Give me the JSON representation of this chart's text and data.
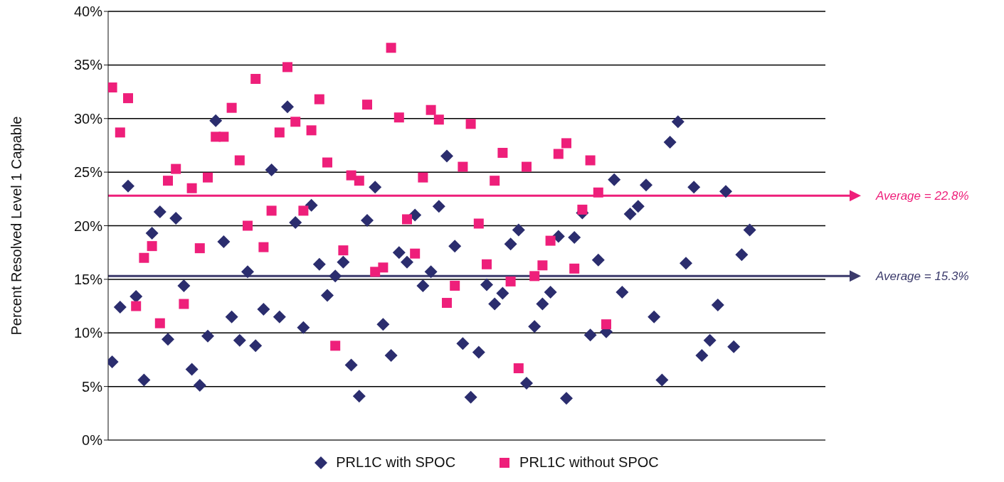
{
  "chart_data": {
    "type": "scatter",
    "ylabel": "Percent Resolved Level 1 Capable",
    "categories": [
      null,
      null,
      null,
      null,
      null,
      null,
      null,
      null,
      null,
      null,
      null,
      null,
      null,
      null,
      null,
      null,
      null,
      null,
      null,
      null,
      null,
      null,
      null,
      null,
      null,
      null,
      null,
      null,
      null,
      null,
      null,
      null,
      null,
      null,
      null,
      null,
      null,
      null,
      null,
      null,
      null,
      null,
      null,
      null,
      null,
      null,
      null,
      null,
      null,
      null,
      null,
      null,
      null,
      null,
      null,
      null,
      null,
      null,
      null,
      null,
      null,
      null,
      null,
      null,
      null,
      null,
      null,
      null,
      null,
      null,
      null,
      null,
      null,
      null,
      null,
      null,
      null,
      null,
      null,
      null,
      null,
      null,
      null,
      null,
      null,
      null,
      null,
      null,
      null,
      null
    ],
    "series": [
      {
        "name": "PRL1C with SPOC",
        "color": "#2b2d6e",
        "marker": "diamond",
        "values": [
          7.3,
          12.4,
          23.7,
          13.4,
          5.6,
          19.3,
          21.3,
          9.4,
          20.7,
          14.4,
          6.6,
          5.1,
          9.7,
          29.8,
          18.5,
          11.5,
          9.3,
          15.7,
          8.8,
          12.2,
          25.2,
          11.5,
          31.1,
          20.3,
          10.5,
          21.9,
          16.4,
          13.5,
          15.3,
          16.6,
          7.0,
          4.1,
          20.5,
          23.6,
          10.8,
          7.9,
          17.5,
          16.6,
          21.0,
          14.4,
          15.7,
          21.8,
          26.5,
          18.1,
          9.0,
          4.0,
          8.2,
          14.5,
          12.7,
          13.7,
          18.3,
          19.6,
          5.3,
          10.6,
          12.7,
          13.8,
          19.0,
          3.9,
          18.9,
          21.2,
          9.8,
          16.8,
          10.1,
          24.3,
          13.8,
          21.1,
          21.8,
          23.8,
          11.5,
          5.6,
          27.8,
          29.7,
          16.5,
          23.6,
          7.9,
          9.3,
          12.6,
          23.2,
          8.7,
          17.3,
          19.6,
          null,
          null,
          null,
          null,
          null,
          null,
          null,
          null,
          null
        ]
      },
      {
        "name": "PRL1C without SPOC",
        "color": "#ee1f7a",
        "marker": "square",
        "values": [
          32.9,
          28.7,
          31.9,
          12.5,
          17.0,
          18.1,
          10.9,
          24.2,
          25.3,
          12.7,
          23.5,
          17.9,
          24.5,
          28.3,
          28.3,
          31.0,
          26.1,
          20.0,
          33.7,
          18.0,
          21.4,
          28.7,
          34.8,
          29.7,
          21.4,
          28.9,
          31.8,
          25.9,
          8.8,
          17.7,
          24.7,
          24.2,
          31.3,
          15.7,
          16.1,
          36.6,
          30.1,
          20.6,
          17.4,
          24.5,
          30.8,
          29.9,
          12.8,
          14.4,
          25.5,
          29.5,
          20.2,
          16.4,
          24.2,
          26.8,
          14.8,
          6.7,
          25.5,
          15.3,
          16.3,
          18.6,
          26.7,
          27.7,
          16.0,
          21.5,
          26.1,
          23.1,
          10.8,
          null,
          null,
          null,
          null,
          null,
          null,
          null,
          null,
          null,
          null,
          null,
          null,
          null,
          null,
          null,
          null,
          null,
          null,
          null,
          null,
          null,
          null,
          null,
          null,
          null,
          null,
          null
        ]
      }
    ],
    "ref_lines": [
      {
        "axis": "y",
        "value": 22.8,
        "label": "Average = 22.8%",
        "color": "#ee1f7a"
      },
      {
        "axis": "y",
        "value": 15.3,
        "label": "Average = 15.3%",
        "color": "#3b3a6b"
      }
    ],
    "ylim": [
      0,
      40
    ],
    "yticks": [
      {
        "value": 0,
        "label": "0%"
      },
      {
        "value": 5,
        "label": "5%"
      },
      {
        "value": 10,
        "label": "10%"
      },
      {
        "value": 15,
        "label": "15%"
      },
      {
        "value": 20,
        "label": "20%"
      },
      {
        "value": 25,
        "label": "25%"
      },
      {
        "value": 30,
        "label": "30%"
      },
      {
        "value": 35,
        "label": "35%"
      },
      {
        "value": 40,
        "label": "40%"
      }
    ],
    "grid": "y",
    "legend": "bottom"
  }
}
